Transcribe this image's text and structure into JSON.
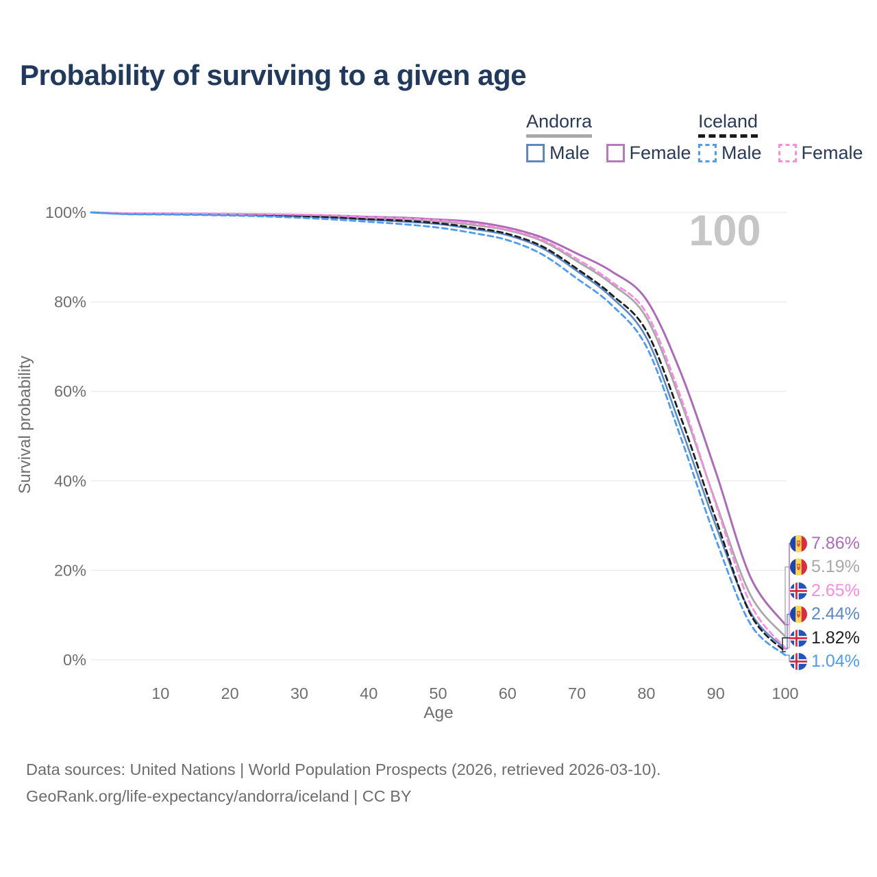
{
  "title": "Probability of surviving to a given age",
  "legend": {
    "groups": [
      {
        "label": "Andorra",
        "line_style": "solid",
        "underline_color": "#a8a8a8",
        "items": [
          {
            "label": "Male",
            "color": "#5b87c5"
          },
          {
            "label": "Female",
            "color": "#b778bd"
          }
        ]
      },
      {
        "label": "Iceland",
        "line_style": "dashed",
        "underline_color": "#1a1a1a",
        "items": [
          {
            "label": "Male",
            "color": "#4d9bf3"
          },
          {
            "label": "Female",
            "color": "#fb8ae1"
          }
        ]
      }
    ]
  },
  "chart_data": {
    "type": "line",
    "title": "Probability of surviving to a given age",
    "xlabel": "Age",
    "ylabel": "Survival probability",
    "xlim": [
      0,
      100
    ],
    "ylim": [
      0,
      100
    ],
    "grid": "horizontal-only",
    "watermark": "100",
    "x_ticks": [
      {
        "label": "10",
        "value": 10
      },
      {
        "label": "20",
        "value": 20
      },
      {
        "label": "30",
        "value": 30
      },
      {
        "label": "40",
        "value": 40
      },
      {
        "label": "50",
        "value": 50
      },
      {
        "label": "60",
        "value": 60
      },
      {
        "label": "70",
        "value": 70
      },
      {
        "label": "80",
        "value": 80
      },
      {
        "label": "90",
        "value": 90
      },
      {
        "label": "100",
        "value": 100
      }
    ],
    "y_ticks": [
      {
        "label": "0%",
        "value": 0
      },
      {
        "label": "20%",
        "value": 20
      },
      {
        "label": "40%",
        "value": 40
      },
      {
        "label": "60%",
        "value": 60
      },
      {
        "label": "80%",
        "value": 80
      },
      {
        "label": "100%",
        "value": 100
      }
    ],
    "x": [
      0,
      5,
      10,
      15,
      20,
      25,
      30,
      35,
      40,
      45,
      50,
      55,
      60,
      65,
      70,
      75,
      80,
      85,
      90,
      95,
      100
    ],
    "series": [
      {
        "name": "Andorra Female",
        "slug": "andorra-female",
        "color": "#ab6bb8",
        "dash": false,
        "width": 3,
        "values": [
          100,
          99.75,
          99.72,
          99.68,
          99.62,
          99.55,
          99.45,
          99.3,
          99.0,
          98.8,
          98.4,
          97.9,
          96.6,
          94.4,
          90.8,
          86.8,
          80.5,
          64.0,
          42.0,
          18.5,
          7.86
        ]
      },
      {
        "name": "Andorra Both sexes",
        "slug": "andorra-both",
        "color": "#a8a8a8",
        "dash": false,
        "width": 2.8,
        "values": [
          100,
          99.7,
          99.66,
          99.6,
          99.52,
          99.42,
          99.28,
          99.08,
          98.7,
          98.45,
          98.0,
          97.2,
          96.0,
          93.6,
          89.1,
          84.0,
          76.5,
          57.5,
          35.2,
          14.5,
          5.19
        ]
      },
      {
        "name": "Andorra Male",
        "slug": "andorra-male",
        "color": "#5b87c5",
        "dash": false,
        "width": 2.6,
        "values": [
          100,
          99.65,
          99.6,
          99.52,
          99.42,
          99.28,
          99.1,
          98.8,
          98.35,
          97.95,
          97.4,
          96.3,
          94.9,
          92.0,
          86.9,
          81.0,
          72.0,
          51.8,
          30.0,
          10.6,
          2.44
        ]
      },
      {
        "name": "Iceland Both sexes",
        "slug": "iceland-both",
        "color": "#1f1f1f",
        "dash": true,
        "width": 2.8,
        "values": [
          100,
          99.68,
          99.63,
          99.57,
          99.5,
          99.38,
          99.2,
          98.92,
          98.5,
          98.15,
          97.6,
          96.6,
          95.2,
          92.4,
          87.4,
          81.6,
          73.5,
          54.0,
          31.5,
          10.2,
          1.82
        ]
      },
      {
        "name": "Iceland Female",
        "slug": "iceland-female",
        "color": "#fb8ae1",
        "dash": true,
        "width": 2.8,
        "values": [
          100,
          99.8,
          99.78,
          99.75,
          99.7,
          99.62,
          99.5,
          99.3,
          98.9,
          98.65,
          98.25,
          97.5,
          96.2,
          93.9,
          89.6,
          84.5,
          77.5,
          58.5,
          34.8,
          12.5,
          2.65
        ]
      },
      {
        "name": "Iceland Male",
        "slug": "iceland-male",
        "color": "#4d9bf3",
        "dash": true,
        "width": 2.8,
        "values": [
          100,
          99.6,
          99.53,
          99.44,
          99.3,
          99.1,
          98.8,
          98.4,
          97.9,
          97.35,
          96.6,
          95.4,
          93.8,
          90.6,
          85.2,
          79.3,
          70.0,
          49.5,
          27.0,
          8.0,
          1.04
        ]
      }
    ],
    "end_labels": [
      {
        "text": "7.86%",
        "series": "Andorra Female",
        "flag": "andorra",
        "color": "#ab6bb8"
      },
      {
        "text": "5.19%",
        "series": "Andorra Both sexes",
        "flag": "andorra",
        "color": "#a8a8a8"
      },
      {
        "text": "2.65%",
        "series": "Iceland Female",
        "flag": "iceland",
        "color": "#fb8ae1"
      },
      {
        "text": "2.44%",
        "series": "Andorra Male",
        "flag": "andorra",
        "color": "#5b87c5"
      },
      {
        "text": "1.82%",
        "series": "Iceland Both sexes",
        "flag": "iceland",
        "color": "#1f1f1f"
      },
      {
        "text": "1.04%",
        "series": "Iceland Male",
        "flag": "iceland",
        "color": "#4d9bf3"
      }
    ]
  },
  "footer": {
    "line1": "Data sources: United Nations | World Population Prospects (2026, retrieved 2026-03-10).",
    "line2": "GeoRank.org/life-expectancy/andorra/iceland | CC BY"
  }
}
